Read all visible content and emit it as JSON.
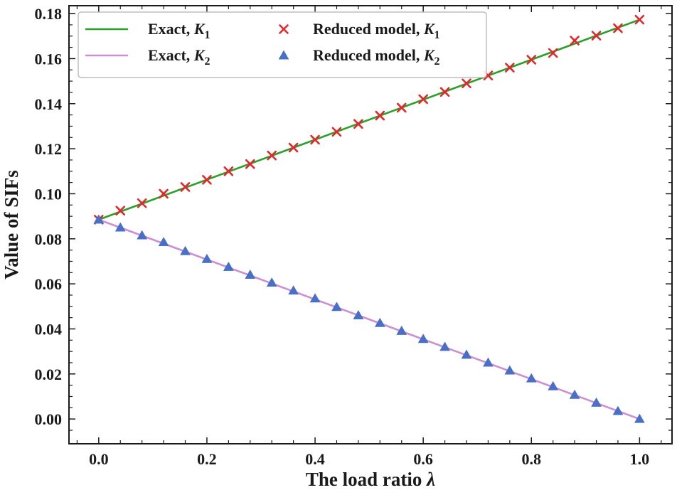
{
  "chart_data": {
    "type": "line",
    "xlabel": "The load ratio",
    "xlabel_symbol": "λ",
    "ylabel": "Value of SIFs",
    "xlim": [
      -0.055,
      1.06
    ],
    "ylim": [
      -0.011,
      0.1835
    ],
    "xticks": [
      0.0,
      0.2,
      0.4,
      0.6,
      0.8,
      1.0
    ],
    "xtick_labels": [
      "0.0",
      "0.2",
      "0.4",
      "0.6",
      "0.8",
      "1.0"
    ],
    "yticks": [
      0.0,
      0.02,
      0.04,
      0.06,
      0.08,
      0.1,
      0.12,
      0.14,
      0.16,
      0.18
    ],
    "ytick_labels": [
      "0.00",
      "0.02",
      "0.04",
      "0.06",
      "0.08",
      "0.10",
      "0.12",
      "0.14",
      "0.16",
      "0.18"
    ],
    "legend_position": "top-left",
    "x": [
      0.0,
      0.04,
      0.08,
      0.12,
      0.16,
      0.2,
      0.24,
      0.28,
      0.32,
      0.36,
      0.4,
      0.44,
      0.48,
      0.52,
      0.56,
      0.6,
      0.64,
      0.68,
      0.72,
      0.76,
      0.8,
      0.84,
      0.88,
      0.92,
      0.96,
      1.0
    ],
    "series": [
      {
        "name": "Exact, K1",
        "label_prefix": "Exact, ",
        "label_symbol": "K",
        "label_sub": "1",
        "kind": "line",
        "color": "#2ca02c",
        "endpoints": [
          [
            0.0,
            0.0885
          ],
          [
            1.0,
            0.1773
          ]
        ]
      },
      {
        "name": "Exact, K2",
        "label_prefix": "Exact, ",
        "label_symbol": "K",
        "label_sub": "2",
        "kind": "line",
        "color": "#cc8fd0",
        "endpoints": [
          [
            0.0,
            0.0885
          ],
          [
            1.0,
            0.0
          ]
        ]
      },
      {
        "name": "Reduced model, K1",
        "label_prefix": "Reduced model, ",
        "label_symbol": "K",
        "label_sub": "1",
        "kind": "marker",
        "marker": "x",
        "color": "#e0282d",
        "values": [
          0.0885,
          0.0925,
          0.0958,
          0.1,
          0.103,
          0.1062,
          0.11,
          0.1132,
          0.117,
          0.1205,
          0.124,
          0.1275,
          0.131,
          0.1347,
          0.1382,
          0.142,
          0.1452,
          0.149,
          0.1525,
          0.156,
          0.1595,
          0.1625,
          0.168,
          0.1702,
          0.1735,
          0.1773
        ]
      },
      {
        "name": "Reduced model, K2",
        "label_prefix": "Reduced model, ",
        "label_symbol": "K",
        "label_sub": "2",
        "kind": "marker",
        "marker": "triangle",
        "color": "#4a6fc7",
        "values": [
          0.0885,
          0.085,
          0.0815,
          0.0785,
          0.0745,
          0.071,
          0.0675,
          0.064,
          0.0605,
          0.057,
          0.0535,
          0.0497,
          0.046,
          0.0426,
          0.0391,
          0.0355,
          0.032,
          0.0285,
          0.025,
          0.0215,
          0.018,
          0.0145,
          0.0107,
          0.0072,
          0.0035,
          0.0
        ]
      }
    ]
  }
}
